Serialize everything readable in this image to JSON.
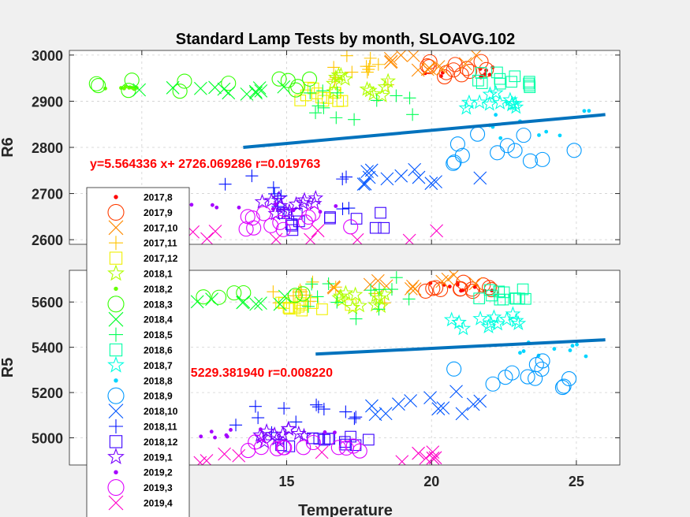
{
  "figure": {
    "title": "Standard Lamp Tests by month, SLOAVG.102",
    "xlabel": "Temperature"
  },
  "chart_data": [
    {
      "type": "scatter",
      "panel": "top",
      "title": "Standard Lamp Tests by month, SLOAVG.102",
      "xlabel": "",
      "ylabel": "R6",
      "xlim": [
        7.5,
        26.5
      ],
      "ylim": [
        2590,
        3010
      ],
      "xticks": [
        10,
        15,
        20,
        25
      ],
      "yticks": [
        2600,
        2700,
        2800,
        2900,
        3000
      ],
      "grid": true,
      "annotation": "y=5.564336 x+ 2726.069286 r=0.019763",
      "fit_line": {
        "x": [
          13.5,
          26
        ],
        "y": [
          2800,
          2871
        ]
      },
      "clusters": [
        {
          "series": "2017,8",
          "x": [
            19.6,
            22.6
          ],
          "y": [
            2950,
            2975
          ]
        },
        {
          "series": "2017,9",
          "x": [
            19.6,
            22.2
          ],
          "y": [
            2950,
            2990
          ]
        },
        {
          "series": "2017,10",
          "x": [
            18.5,
            21.6
          ],
          "y": [
            2965,
            3000
          ]
        },
        {
          "series": "2017,11",
          "x": [
            16.5,
            18.5
          ],
          "y": [
            2930,
            3000
          ]
        },
        {
          "series": "2017,12",
          "x": [
            14.8,
            17.5
          ],
          "y": [
            2900,
            2930
          ]
        },
        {
          "series": "2018,1",
          "x": [
            16.5,
            18.5
          ],
          "y": [
            2900,
            2960
          ]
        },
        {
          "series": "2018,2",
          "x": [
            8.3,
            10.0
          ],
          "y": [
            2925,
            2935
          ]
        },
        {
          "series": "2018,3",
          "x": [
            8.4,
            15.8
          ],
          "y": [
            2920,
            2950
          ]
        },
        {
          "series": "2018,4",
          "x": [
            8.3,
            15.5
          ],
          "y": [
            2910,
            2935
          ]
        },
        {
          "series": "2018,5",
          "x": [
            15.5,
            19.5
          ],
          "y": [
            2860,
            2930
          ]
        },
        {
          "series": "2018,6",
          "x": [
            21.5,
            23.5
          ],
          "y": [
            2930,
            2965
          ]
        },
        {
          "series": "2018,7",
          "x": [
            20.5,
            23.0
          ],
          "y": [
            2885,
            2930
          ]
        },
        {
          "series": "2018,8",
          "x": [
            22.0,
            25.5
          ],
          "y": [
            2820,
            2880
          ]
        },
        {
          "series": "2018,9",
          "x": [
            20.5,
            25.0
          ],
          "y": [
            2735,
            2830
          ]
        },
        {
          "series": "2018,10",
          "x": [
            17.5,
            22.0
          ],
          "y": [
            2720,
            2760
          ]
        },
        {
          "series": "2018,11",
          "x": [
            12.5,
            17.5
          ],
          "y": [
            2660,
            2740
          ]
        },
        {
          "series": "2018,12",
          "x": [
            14.5,
            18.5
          ],
          "y": [
            2610,
            2660
          ]
        },
        {
          "series": "2019,1",
          "x": [
            14.0,
            16.0
          ],
          "y": [
            2650,
            2690
          ]
        },
        {
          "series": "2019,2",
          "x": [
            11.0,
            17.5
          ],
          "y": [
            2655,
            2680
          ]
        },
        {
          "series": "2019,3",
          "x": [
            13.5,
            18.0
          ],
          "y": [
            2615,
            2660
          ]
        },
        {
          "series": "2019,4",
          "x": [
            9.3,
            21.0
          ],
          "y": [
            2595,
            2630
          ]
        }
      ]
    },
    {
      "type": "scatter",
      "panel": "bottom",
      "title": "",
      "xlabel": "Temperature",
      "ylabel": "R5",
      "xlim": [
        7.5,
        26.5
      ],
      "ylim": [
        4880,
        5740
      ],
      "xticks": [
        10,
        15,
        20,
        25
      ],
      "yticks": [
        5000,
        5200,
        5400,
        5600
      ],
      "grid": true,
      "annotation": "+ 5229.381940 r=0.008220",
      "fit_line": {
        "x": [
          16,
          26
        ],
        "y": [
          5370,
          5433
        ]
      },
      "clusters": [
        {
          "series": "2017,8",
          "x": [
            19.6,
            22.6
          ],
          "y": [
            5640,
            5690
          ]
        },
        {
          "series": "2017,9",
          "x": [
            19.6,
            22.2
          ],
          "y": [
            5630,
            5700
          ]
        },
        {
          "series": "2017,10",
          "x": [
            16.5,
            21.6
          ],
          "y": [
            5650,
            5720
          ]
        },
        {
          "series": "2017,11",
          "x": [
            14.5,
            18.5
          ],
          "y": [
            5590,
            5690
          ]
        },
        {
          "series": "2017,12",
          "x": [
            14.8,
            17.5
          ],
          "y": [
            5560,
            5600
          ]
        },
        {
          "series": "2018,1",
          "x": [
            16.5,
            18.5
          ],
          "y": [
            5560,
            5640
          ]
        },
        {
          "series": "2018,2",
          "x": [
            8.3,
            10.0
          ],
          "y": [
            5630,
            5640
          ]
        },
        {
          "series": "2018,3",
          "x": [
            8.4,
            15.8
          ],
          "y": [
            5610,
            5650
          ]
        },
        {
          "series": "2018,4",
          "x": [
            8.3,
            15.5
          ],
          "y": [
            5590,
            5630
          ]
        },
        {
          "series": "2018,5",
          "x": [
            15.5,
            19.5
          ],
          "y": [
            5520,
            5720
          ]
        },
        {
          "series": "2018,6",
          "x": [
            21.5,
            23.5
          ],
          "y": [
            5600,
            5660
          ]
        },
        {
          "series": "2018,7",
          "x": [
            20.5,
            23.0
          ],
          "y": [
            5480,
            5560
          ]
        },
        {
          "series": "2018,8",
          "x": [
            22.0,
            25.5
          ],
          "y": [
            5350,
            5450
          ]
        },
        {
          "series": "2018,9",
          "x": [
            20.5,
            25.0
          ],
          "y": [
            5170,
            5340
          ]
        },
        {
          "series": "2018,10",
          "x": [
            17.5,
            22.0
          ],
          "y": [
            5090,
            5210
          ]
        },
        {
          "series": "2018,11",
          "x": [
            12.5,
            17.5
          ],
          "y": [
            5000,
            5150
          ]
        },
        {
          "series": "2018,12",
          "x": [
            14.5,
            18.5
          ],
          "y": [
            4960,
            5010
          ]
        },
        {
          "series": "2019,1",
          "x": [
            14.0,
            16.0
          ],
          "y": [
            4980,
            5040
          ]
        },
        {
          "series": "2019,2",
          "x": [
            11.0,
            17.5
          ],
          "y": [
            5000,
            5040
          ]
        },
        {
          "series": "2019,3",
          "x": [
            13.5,
            18.0
          ],
          "y": [
            4940,
            4990
          ]
        },
        {
          "series": "2019,4",
          "x": [
            9.3,
            21.0
          ],
          "y": [
            4890,
            4940
          ]
        }
      ]
    }
  ],
  "legend": {
    "placement": "left",
    "entries": [
      {
        "label": "2017,8",
        "marker": "dot",
        "color": "#ff0000"
      },
      {
        "label": "2017,9",
        "marker": "circle",
        "color": "#ff3d00"
      },
      {
        "label": "2017,10",
        "marker": "x",
        "color": "#ff8a00"
      },
      {
        "label": "2017,11",
        "marker": "plus",
        "color": "#ffc400"
      },
      {
        "label": "2017,12",
        "marker": "square",
        "color": "#f0f000"
      },
      {
        "label": "2018,1",
        "marker": "star",
        "color": "#b0ff00"
      },
      {
        "label": "2018,2",
        "marker": "dot",
        "color": "#66ff00"
      },
      {
        "label": "2018,3",
        "marker": "circle",
        "color": "#33ff00"
      },
      {
        "label": "2018,4",
        "marker": "x",
        "color": "#00ff2a"
      },
      {
        "label": "2018,5",
        "marker": "plus",
        "color": "#00ff55"
      },
      {
        "label": "2018,6",
        "marker": "square",
        "color": "#00ffa6"
      },
      {
        "label": "2018,7",
        "marker": "star",
        "color": "#00ffe0"
      },
      {
        "label": "2018,8",
        "marker": "dot",
        "color": "#00d5ff"
      },
      {
        "label": "2018,9",
        "marker": "circle",
        "color": "#0099ff"
      },
      {
        "label": "2018,10",
        "marker": "x",
        "color": "#0055ff"
      },
      {
        "label": "2018,11",
        "marker": "plus",
        "color": "#0011ff"
      },
      {
        "label": "2018,12",
        "marker": "square",
        "color": "#3a00ff"
      },
      {
        "label": "2019,1",
        "marker": "star",
        "color": "#7700ff"
      },
      {
        "label": "2019,2",
        "marker": "dot",
        "color": "#a500ff"
      },
      {
        "label": "2019,3",
        "marker": "circle",
        "color": "#dd00ff"
      },
      {
        "label": "2019,4",
        "marker": "x",
        "color": "#ff00c8"
      }
    ]
  },
  "colors": {
    "fit_line": "#0072bd",
    "annotation": "#ff0000",
    "grid": "#d0d0d0"
  }
}
